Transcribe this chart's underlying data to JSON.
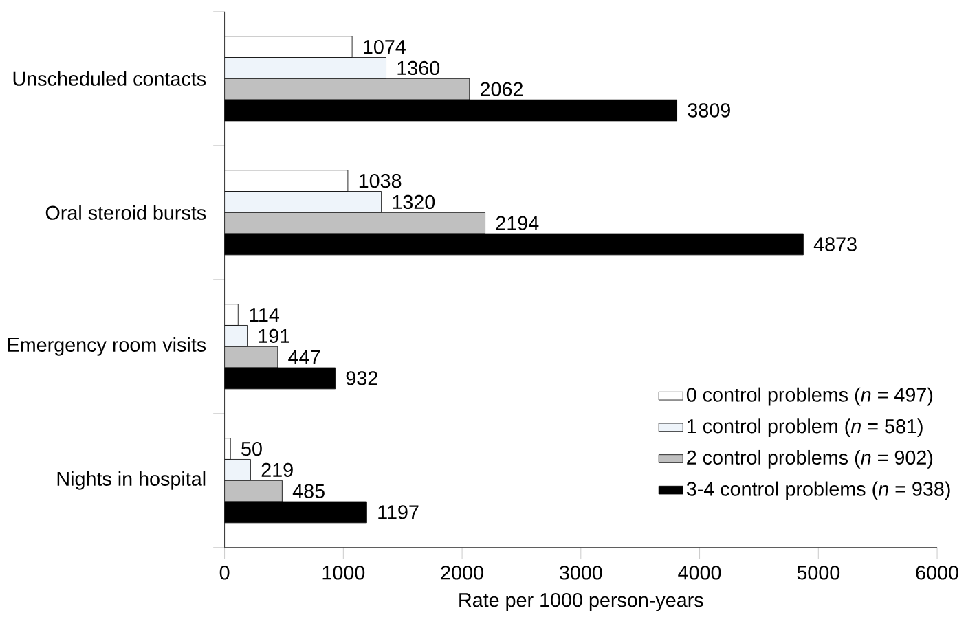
{
  "chart_data": {
    "type": "bar",
    "orientation": "horizontal",
    "xlabel": "Rate per 1000 person-years",
    "categories": [
      "Unscheduled contacts",
      "Oral steroid bursts",
      "Emergency room visits",
      "Nights in hospital"
    ],
    "series": [
      {
        "name": "0 control problems (*n* = 497)",
        "color": "#ffffff",
        "values": [
          1074,
          1038,
          114,
          50
        ]
      },
      {
        "name": "1 control problem (*n* = 581)",
        "color": "#eef4fa",
        "values": [
          1360,
          1320,
          191,
          219
        ]
      },
      {
        "name": "2 control problems (*n* = 902)",
        "color": "#c0c0c0",
        "values": [
          2062,
          2194,
          447,
          485
        ]
      },
      {
        "name": "3-4 control problems (*n* = 938)",
        "color": "#000000",
        "values": [
          3809,
          4873,
          932,
          1197
        ]
      }
    ],
    "xlim": [
      0,
      6000
    ],
    "xticks": [
      0,
      1000,
      2000,
      3000,
      4000,
      5000,
      6000
    ],
    "data_labels": true,
    "legend": "bottom right",
    "grid": false
  }
}
